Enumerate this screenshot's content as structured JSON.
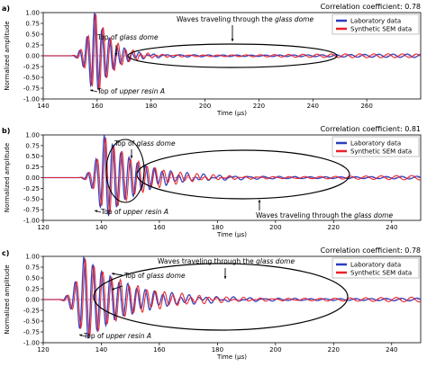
{
  "colors": {
    "laboratory": "#2b3bbf",
    "synthetic": "#e8202a",
    "zero": "#c8102e"
  },
  "chart_data": [
    {
      "type": "line",
      "panel_label": "a)",
      "correlation": "Correlation coefficient: 0.78",
      "xlabel": "Time (μs)",
      "ylabel": "Normalized amplitude",
      "xlim": [
        140,
        280
      ],
      "ylim": [
        -1.0,
        1.0
      ],
      "xticks": [
        "140",
        "160",
        "180",
        "200",
        "220",
        "240",
        "260"
      ],
      "xtick_values": [
        140,
        160,
        180,
        200,
        220,
        240,
        260
      ],
      "yticks": [
        "1.00",
        "0.75",
        "0.50",
        "0.25",
        "0.00",
        "-0.25",
        "-0.50",
        "-0.75",
        "-1.00"
      ],
      "ytick_values": [
        1.0,
        0.75,
        0.5,
        0.25,
        0.0,
        -0.25,
        -0.5,
        -0.75,
        -1.0
      ],
      "legend": [
        "Laboratory data",
        "Synthetic SEM data"
      ],
      "legend_position": "top-right",
      "grid": false,
      "series": [
        {
          "name": "Laboratory data",
          "t0": 150.0,
          "peak_time": 159.0,
          "peak": 1.0,
          "freq": 0.36,
          "decay": 0.17,
          "coda": 0.04,
          "phase": 0.0
        },
        {
          "name": "Synthetic SEM data",
          "t0": 150.0,
          "peak_time": 159.5,
          "peak": 1.0,
          "freq": 0.36,
          "decay": 0.16,
          "coda": 0.045,
          "phase": 0.5
        }
      ],
      "annotations": [
        {
          "text_a": "Top of ",
          "text_b": "glass dome",
          "text_c": ""
        },
        {
          "text_a": "Waves traveling through the ",
          "text_b": "glass dome",
          "text_c": ""
        },
        {
          "text_a": "Top of ",
          "text_b": "upper resin A",
          "text_c": ""
        }
      ]
    },
    {
      "type": "line",
      "panel_label": "b)",
      "correlation": "Correlation coefficient: 0.81",
      "xlabel": "Time (μs)",
      "ylabel": "Normalized amplitude",
      "xlim": [
        120,
        250
      ],
      "ylim": [
        -1.0,
        1.0
      ],
      "xticks": [
        "120",
        "140",
        "160",
        "180",
        "200",
        "220",
        "240"
      ],
      "xtick_values": [
        120,
        140,
        160,
        180,
        200,
        220,
        240
      ],
      "yticks": [
        "1.00",
        "0.75",
        "0.50",
        "0.25",
        "0.00",
        "-0.25",
        "-0.50",
        "-0.75",
        "-1.00"
      ],
      "ytick_values": [
        1.0,
        0.75,
        0.5,
        0.25,
        0.0,
        -0.25,
        -0.5,
        -0.75,
        -1.0
      ],
      "legend": [
        "Laboratory data",
        "Synthetic SEM data"
      ],
      "legend_position": "top-right",
      "grid": false,
      "series": [
        {
          "name": "Laboratory data",
          "t0": 132.0,
          "peak_time": 141.0,
          "peak": 1.0,
          "freq": 0.35,
          "decay": 0.09,
          "coda": 0.05,
          "phase": 0.0
        },
        {
          "name": "Synthetic SEM data",
          "t0": 132.0,
          "peak_time": 141.5,
          "peak": 0.95,
          "freq": 0.35,
          "decay": 0.085,
          "coda": 0.055,
          "phase": 0.4
        }
      ],
      "annotations": [
        {
          "text_a": "Top of ",
          "text_b": "glass dome",
          "text_c": ""
        },
        {
          "text_a": "Waves traveling through the ",
          "text_b": "glass dome",
          "text_c": ""
        },
        {
          "text_a": "Top of ",
          "text_b": "upper resin A",
          "text_c": ""
        }
      ]
    },
    {
      "type": "line",
      "panel_label": "c)",
      "correlation": "Correlation coefficient: 0.78",
      "xlabel": "Time (μs)",
      "ylabel": "Normalized amplitude",
      "xlim": [
        120,
        250
      ],
      "ylim": [
        -1.0,
        1.0
      ],
      "xticks": [
        "120",
        "140",
        "160",
        "180",
        "200",
        "220",
        "240"
      ],
      "xtick_values": [
        120,
        140,
        160,
        180,
        200,
        220,
        240
      ],
      "yticks": [
        "1.00",
        "0.75",
        "0.50",
        "0.25",
        "0.00",
        "-0.25",
        "-0.50",
        "-0.75",
        "-1.00"
      ],
      "ytick_values": [
        1.0,
        0.75,
        0.5,
        0.25,
        0.0,
        -0.25,
        -0.5,
        -0.75,
        -1.0
      ],
      "legend": [
        "Laboratory data",
        "Synthetic SEM data"
      ],
      "legend_position": "top-right",
      "grid": false,
      "series": [
        {
          "name": "Laboratory data",
          "t0": 125.0,
          "peak_time": 134.0,
          "peak": 1.0,
          "freq": 0.33,
          "decay": 0.07,
          "coda": 0.05,
          "phase": 0.0
        },
        {
          "name": "Synthetic SEM data",
          "t0": 125.0,
          "peak_time": 134.5,
          "peak": 0.95,
          "freq": 0.33,
          "decay": 0.065,
          "coda": 0.06,
          "phase": 0.5
        }
      ],
      "annotations": [
        {
          "text_a": "Top of ",
          "text_b": "glass dome",
          "text_c": ""
        },
        {
          "text_a": "Waves traveling through the ",
          "text_b": "glass dome",
          "text_c": ""
        },
        {
          "text_a": "Top of ",
          "text_b": "upper resin A",
          "text_c": ""
        }
      ]
    }
  ]
}
